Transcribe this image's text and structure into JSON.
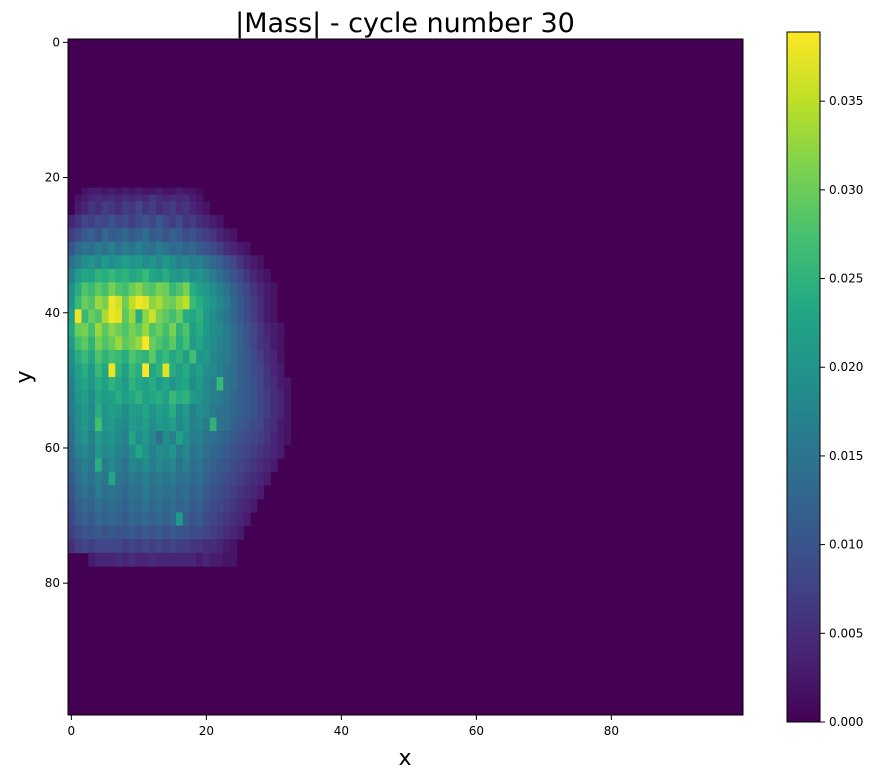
{
  "chart_data": {
    "type": "heatmap",
    "title": "|Mass| - cycle number 30",
    "xlabel": "x",
    "ylabel": "y",
    "grid": false,
    "colormap": "viridis",
    "grid_size": [
      100,
      100
    ],
    "xlim": [
      -0.5,
      99.5
    ],
    "ylim": [
      99.5,
      -0.5
    ],
    "x_ticks": [
      0,
      20,
      40,
      60,
      80
    ],
    "y_ticks": [
      0,
      20,
      40,
      60,
      80
    ],
    "x_tick_labels": [
      "0",
      "20",
      "40",
      "60",
      "80"
    ],
    "y_tick_labels": [
      "0",
      "20",
      "40",
      "60",
      "80"
    ],
    "colorbar": {
      "vmin": 0.0,
      "vmax": 0.0389,
      "ticks": [
        0.0,
        0.005,
        0.01,
        0.015,
        0.02,
        0.025,
        0.03,
        0.035
      ],
      "tick_labels": [
        "0.000",
        "0.005",
        "0.010",
        "0.015",
        "0.020",
        "0.025",
        "0.030",
        "0.035"
      ]
    },
    "blob": {
      "description_of_values": "nonzero region only; all other cells are 0.000",
      "row_start": 22,
      "rows": [
        {
          "y": 22,
          "x0": 2,
          "values": [
            0.002,
            0.003,
            0.003,
            0.002,
            0.003,
            0.002,
            0.003,
            0.002,
            0.003,
            0.002,
            0.002,
            0.003,
            0.002,
            0.002,
            0.003,
            0.002,
            0.002,
            0.001
          ]
        },
        {
          "y": 23,
          "x0": 1,
          "values": [
            0.002,
            0.003,
            0.004,
            0.005,
            0.004,
            0.005,
            0.004,
            0.005,
            0.004,
            0.005,
            0.004,
            0.006,
            0.005,
            0.004,
            0.005,
            0.004,
            0.005,
            0.003,
            0.002
          ]
        },
        {
          "y": 24,
          "x0": 1,
          "values": [
            0.003,
            0.004,
            0.006,
            0.005,
            0.007,
            0.006,
            0.005,
            0.007,
            0.006,
            0.008,
            0.006,
            0.007,
            0.005,
            0.006,
            0.007,
            0.005,
            0.006,
            0.004,
            0.003,
            0.002
          ]
        },
        {
          "y": 26,
          "x0": 0,
          "values": [
            0.004,
            0.006,
            0.008,
            0.007,
            0.009,
            0.008,
            0.01,
            0.008,
            0.009,
            0.007,
            0.009,
            0.01,
            0.008,
            0.011,
            0.008,
            0.007,
            0.009,
            0.006,
            0.007,
            0.005,
            0.004,
            0.003,
            0.002
          ]
        },
        {
          "y": 28,
          "x0": 0,
          "values": [
            0.007,
            0.009,
            0.011,
            0.012,
            0.01,
            0.013,
            0.011,
            0.012,
            0.013,
            0.011,
            0.012,
            0.014,
            0.011,
            0.012,
            0.01,
            0.012,
            0.011,
            0.009,
            0.01,
            0.008,
            0.007,
            0.006,
            0.004,
            0.003,
            0.002
          ]
        },
        {
          "y": 30,
          "x0": 0,
          "values": [
            0.01,
            0.013,
            0.015,
            0.014,
            0.016,
            0.015,
            0.017,
            0.014,
            0.016,
            0.015,
            0.017,
            0.015,
            0.014,
            0.016,
            0.015,
            0.013,
            0.014,
            0.012,
            0.013,
            0.011,
            0.01,
            0.009,
            0.007,
            0.005,
            0.004,
            0.003,
            0.002
          ]
        },
        {
          "y": 32,
          "x0": 0,
          "values": [
            0.014,
            0.017,
            0.019,
            0.02,
            0.018,
            0.021,
            0.019,
            0.02,
            0.022,
            0.02,
            0.021,
            0.019,
            0.02,
            0.018,
            0.021,
            0.019,
            0.017,
            0.018,
            0.016,
            0.017,
            0.015,
            0.013,
            0.012,
            0.01,
            0.008,
            0.006,
            0.004,
            0.003,
            0.002
          ]
        },
        {
          "y": 34,
          "x0": 0,
          "values": [
            0.017,
            0.021,
            0.023,
            0.022,
            0.025,
            0.024,
            0.026,
            0.024,
            0.025,
            0.023,
            0.024,
            0.026,
            0.023,
            0.022,
            0.024,
            0.021,
            0.02,
            0.022,
            0.019,
            0.02,
            0.018,
            0.016,
            0.014,
            0.012,
            0.01,
            0.008,
            0.006,
            0.004,
            0.003,
            0.002
          ]
        },
        {
          "y": 36,
          "x0": 0,
          "values": [
            0.019,
            0.024,
            0.028,
            0.026,
            0.029,
            0.027,
            0.031,
            0.028,
            0.027,
            0.03,
            0.032,
            0.029,
            0.028,
            0.031,
            0.03,
            0.026,
            0.028,
            0.031,
            0.024,
            0.022,
            0.021,
            0.019,
            0.017,
            0.015,
            0.012,
            0.01,
            0.008,
            0.006,
            0.004,
            0.003,
            0.002
          ]
        },
        {
          "y": 38,
          "x0": 0,
          "values": [
            0.02,
            0.026,
            0.03,
            0.028,
            0.033,
            0.031,
            0.038,
            0.036,
            0.03,
            0.035,
            0.038,
            0.037,
            0.032,
            0.034,
            0.031,
            0.03,
            0.033,
            0.035,
            0.026,
            0.024,
            0.022,
            0.02,
            0.018,
            0.016,
            0.013,
            0.011,
            0.009,
            0.007,
            0.005,
            0.003,
            0.002
          ]
        },
        {
          "y": 40,
          "x0": 0,
          "values": [
            0.022,
            0.038,
            0.026,
            0.03,
            0.028,
            0.034,
            0.038,
            0.037,
            0.029,
            0.033,
            0.024,
            0.032,
            0.036,
            0.031,
            0.029,
            0.027,
            0.03,
            0.024,
            0.023,
            0.025,
            0.021,
            0.019,
            0.017,
            0.015,
            0.013,
            0.011,
            0.009,
            0.007,
            0.005,
            0.003,
            0.002
          ]
        },
        {
          "y": 42,
          "x0": 0,
          "values": [
            0.023,
            0.03,
            0.031,
            0.027,
            0.033,
            0.029,
            0.032,
            0.03,
            0.028,
            0.031,
            0.029,
            0.033,
            0.028,
            0.03,
            0.027,
            0.031,
            0.025,
            0.028,
            0.022,
            0.024,
            0.021,
            0.019,
            0.018,
            0.016,
            0.014,
            0.012,
            0.01,
            0.008,
            0.006,
            0.004,
            0.003,
            0.002
          ]
        },
        {
          "y": 44,
          "x0": 0,
          "values": [
            0.021,
            0.027,
            0.029,
            0.025,
            0.031,
            0.028,
            0.03,
            0.033,
            0.029,
            0.031,
            0.033,
            0.039,
            0.03,
            0.028,
            0.026,
            0.029,
            0.024,
            0.027,
            0.021,
            0.023,
            0.02,
            0.019,
            0.017,
            0.016,
            0.014,
            0.012,
            0.01,
            0.008,
            0.006,
            0.005,
            0.003,
            0.002
          ]
        },
        {
          "y": 46,
          "x0": 0,
          "values": [
            0.019,
            0.024,
            0.026,
            0.023,
            0.028,
            0.025,
            0.027,
            0.026,
            0.024,
            0.028,
            0.026,
            0.025,
            0.029,
            0.024,
            0.026,
            0.023,
            0.025,
            0.022,
            0.027,
            0.02,
            0.021,
            0.018,
            0.017,
            0.016,
            0.014,
            0.012,
            0.011,
            0.009,
            0.007,
            0.005,
            0.004,
            0.002
          ]
        },
        {
          "y": 48,
          "x0": 0,
          "values": [
            0.018,
            0.022,
            0.024,
            0.021,
            0.026,
            0.023,
            0.038,
            0.025,
            0.022,
            0.026,
            0.024,
            0.039,
            0.023,
            0.025,
            0.037,
            0.024,
            0.022,
            0.024,
            0.02,
            0.022,
            0.019,
            0.018,
            0.017,
            0.015,
            0.014,
            0.012,
            0.011,
            0.009,
            0.008,
            0.006,
            0.004,
            0.003
          ]
        },
        {
          "y": 50,
          "x0": 0,
          "values": [
            0.017,
            0.021,
            0.023,
            0.02,
            0.024,
            0.022,
            0.025,
            0.023,
            0.021,
            0.025,
            0.023,
            0.022,
            0.024,
            0.021,
            0.023,
            0.02,
            0.022,
            0.023,
            0.019,
            0.021,
            0.018,
            0.017,
            0.026,
            0.015,
            0.014,
            0.012,
            0.011,
            0.01,
            0.008,
            0.006,
            0.005,
            0.003,
            0.002
          ]
        },
        {
          "y": 52,
          "x0": 0,
          "values": [
            0.016,
            0.02,
            0.022,
            0.019,
            0.023,
            0.021,
            0.022,
            0.024,
            0.022,
            0.023,
            0.025,
            0.022,
            0.023,
            0.024,
            0.022,
            0.026,
            0.024,
            0.025,
            0.021,
            0.02,
            0.018,
            0.017,
            0.016,
            0.015,
            0.013,
            0.012,
            0.011,
            0.01,
            0.008,
            0.007,
            0.005,
            0.004,
            0.002
          ]
        },
        {
          "y": 54,
          "x0": 0,
          "values": [
            0.016,
            0.019,
            0.021,
            0.018,
            0.024,
            0.02,
            0.022,
            0.021,
            0.019,
            0.022,
            0.021,
            0.023,
            0.02,
            0.022,
            0.021,
            0.024,
            0.019,
            0.021,
            0.017,
            0.019,
            0.018,
            0.016,
            0.015,
            0.014,
            0.013,
            0.012,
            0.011,
            0.01,
            0.008,
            0.007,
            0.005,
            0.004,
            0.002
          ]
        },
        {
          "y": 56,
          "x0": 0,
          "values": [
            0.015,
            0.019,
            0.021,
            0.018,
            0.027,
            0.02,
            0.021,
            0.019,
            0.018,
            0.021,
            0.02,
            0.022,
            0.019,
            0.021,
            0.02,
            0.022,
            0.018,
            0.02,
            0.017,
            0.018,
            0.016,
            0.025,
            0.015,
            0.014,
            0.012,
            0.011,
            0.01,
            0.009,
            0.008,
            0.006,
            0.005,
            0.003,
            0.002
          ]
        },
        {
          "y": 58,
          "x0": 0,
          "values": [
            0.014,
            0.018,
            0.02,
            0.017,
            0.021,
            0.019,
            0.02,
            0.018,
            0.017,
            0.023,
            0.019,
            0.021,
            0.018,
            0.014,
            0.019,
            0.017,
            0.022,
            0.019,
            0.016,
            0.017,
            0.015,
            0.014,
            0.013,
            0.012,
            0.011,
            0.01,
            0.009,
            0.008,
            0.007,
            0.006,
            0.004,
            0.003,
            0.002
          ]
        },
        {
          "y": 60,
          "x0": 0,
          "values": [
            0.013,
            0.017,
            0.018,
            0.016,
            0.02,
            0.018,
            0.019,
            0.017,
            0.016,
            0.019,
            0.023,
            0.02,
            0.017,
            0.019,
            0.018,
            0.02,
            0.016,
            0.018,
            0.015,
            0.016,
            0.014,
            0.013,
            0.012,
            0.011,
            0.01,
            0.009,
            0.008,
            0.007,
            0.006,
            0.005,
            0.004,
            0.003
          ]
        },
        {
          "y": 62,
          "x0": 0,
          "values": [
            0.012,
            0.015,
            0.017,
            0.015,
            0.024,
            0.016,
            0.018,
            0.016,
            0.015,
            0.018,
            0.017,
            0.019,
            0.016,
            0.018,
            0.017,
            0.018,
            0.015,
            0.017,
            0.014,
            0.015,
            0.013,
            0.012,
            0.011,
            0.01,
            0.009,
            0.008,
            0.007,
            0.006,
            0.005,
            0.004,
            0.003
          ]
        },
        {
          "y": 64,
          "x0": 0,
          "values": [
            0.011,
            0.014,
            0.016,
            0.014,
            0.017,
            0.015,
            0.023,
            0.015,
            0.014,
            0.016,
            0.015,
            0.017,
            0.015,
            0.016,
            0.015,
            0.016,
            0.014,
            0.015,
            0.013,
            0.014,
            0.012,
            0.011,
            0.01,
            0.009,
            0.008,
            0.007,
            0.006,
            0.005,
            0.004,
            0.003
          ]
        },
        {
          "y": 66,
          "x0": 0,
          "values": [
            0.01,
            0.013,
            0.015,
            0.013,
            0.016,
            0.014,
            0.015,
            0.014,
            0.013,
            0.015,
            0.014,
            0.016,
            0.014,
            0.015,
            0.014,
            0.015,
            0.013,
            0.014,
            0.012,
            0.013,
            0.011,
            0.01,
            0.009,
            0.008,
            0.007,
            0.006,
            0.005,
            0.004,
            0.003
          ]
        },
        {
          "y": 68,
          "x0": 0,
          "values": [
            0.009,
            0.012,
            0.013,
            0.012,
            0.014,
            0.013,
            0.014,
            0.013,
            0.012,
            0.014,
            0.013,
            0.015,
            0.013,
            0.014,
            0.013,
            0.014,
            0.012,
            0.013,
            0.011,
            0.012,
            0.01,
            0.009,
            0.008,
            0.007,
            0.006,
            0.005,
            0.004,
            0.003
          ]
        },
        {
          "y": 70,
          "x0": 0,
          "values": [
            0.008,
            0.011,
            0.012,
            0.011,
            0.013,
            0.012,
            0.013,
            0.012,
            0.011,
            0.013,
            0.012,
            0.013,
            0.012,
            0.013,
            0.012,
            0.013,
            0.021,
            0.012,
            0.01,
            0.011,
            0.009,
            0.008,
            0.007,
            0.006,
            0.005,
            0.004,
            0.003
          ]
        },
        {
          "y": 72,
          "x0": 0,
          "values": [
            0.007,
            0.009,
            0.01,
            0.01,
            0.011,
            0.01,
            0.011,
            0.01,
            0.01,
            0.011,
            0.01,
            0.011,
            0.01,
            0.011,
            0.01,
            0.011,
            0.01,
            0.01,
            0.009,
            0.009,
            0.008,
            0.007,
            0.006,
            0.005,
            0.004,
            0.003
          ]
        },
        {
          "y": 74,
          "x0": 0,
          "values": [
            0.005,
            0.007,
            0.008,
            0.007,
            0.008,
            0.008,
            0.008,
            0.008,
            0.007,
            0.008,
            0.007,
            0.008,
            0.007,
            0.008,
            0.007,
            0.008,
            0.007,
            0.007,
            0.006,
            0.006,
            0.005,
            0.005,
            0.004,
            0.003,
            0.002
          ]
        },
        {
          "y": 76,
          "x0": 3,
          "values": [
            0.003,
            0.004,
            0.004,
            0.004,
            0.005,
            0.004,
            0.005,
            0.004,
            0.004,
            0.005,
            0.004,
            0.004,
            0.004,
            0.004,
            0.004,
            0.004,
            0.003,
            0.004,
            0.003,
            0.003,
            0.002,
            0.002
          ]
        }
      ]
    }
  }
}
